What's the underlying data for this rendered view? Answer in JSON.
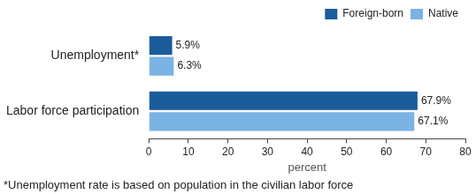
{
  "chart_data": {
    "type": "bar",
    "orientation": "horizontal",
    "categories": [
      "Unemployment*",
      "Labor force participation"
    ],
    "series": [
      {
        "name": "Foreign-born",
        "color": "#1b5c9a",
        "values": [
          5.9,
          67.9
        ],
        "value_labels": [
          "5.9%",
          "67.9%"
        ]
      },
      {
        "name": "Native",
        "color": "#7ab3e4",
        "values": [
          6.3,
          67.1
        ],
        "value_labels": [
          "6.3%",
          "67.1%"
        ]
      }
    ],
    "x_label": "percent",
    "xlim": [
      0,
      80
    ],
    "xticks": [
      0,
      10,
      20,
      30,
      40,
      50,
      60,
      70,
      80
    ],
    "grid": false,
    "legend": "upper right",
    "data_labels": true,
    "footnote": "*Unemployment rate is based on population in the civilian labor force"
  }
}
